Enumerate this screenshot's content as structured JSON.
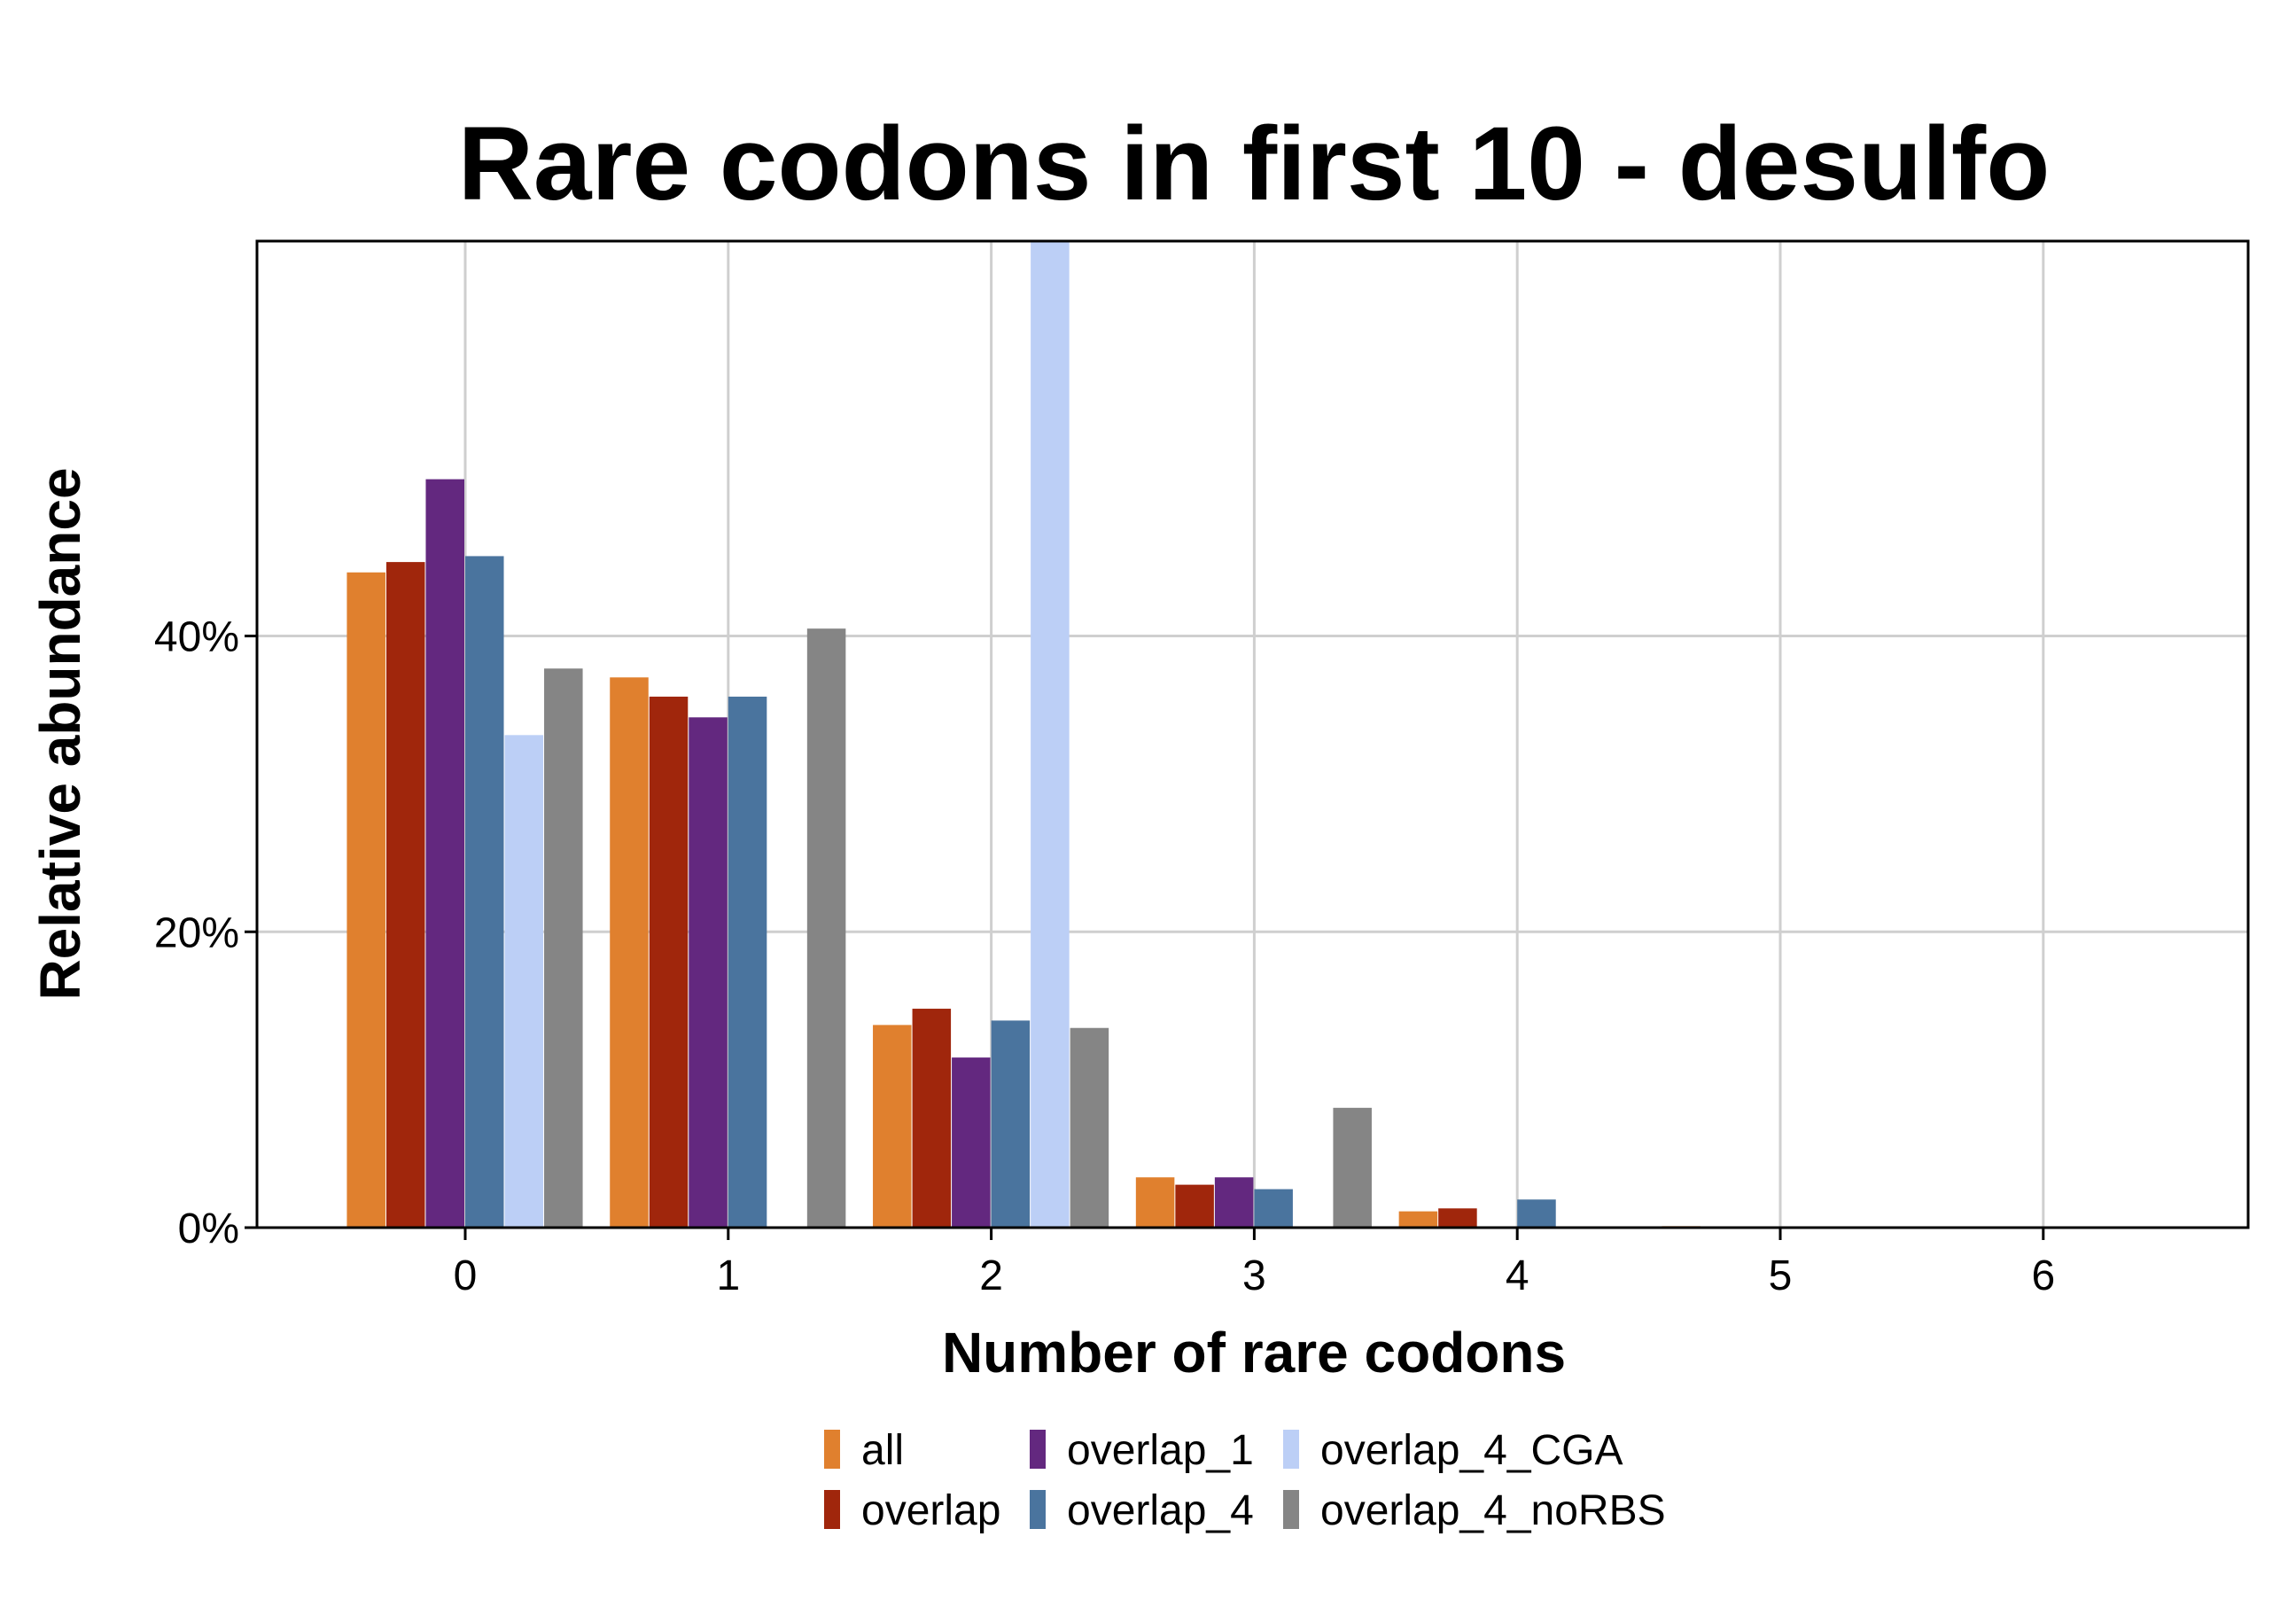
{
  "chart_data": {
    "type": "bar",
    "title": "Rare codons in first 10 - desulfo",
    "xlabel": "Number of rare codons",
    "ylabel": "Relative abundance",
    "categories": [
      "0",
      "1",
      "2",
      "3",
      "4",
      "5",
      "6"
    ],
    "y_ticks": [
      "0%",
      "20%",
      "40%"
    ],
    "y_tick_values": [
      0,
      20,
      40
    ],
    "ylim": [
      0,
      66.7
    ],
    "grid": true,
    "legend_position": "bottom",
    "series": [
      {
        "name": "all",
        "color": "#E0802E",
        "values": [
          44.3,
          37.2,
          13.7,
          3.4,
          1.1,
          0.1,
          0.0
        ]
      },
      {
        "name": "overlap",
        "color": "#A0260C",
        "values": [
          45.0,
          35.9,
          14.8,
          2.9,
          1.3,
          0,
          0
        ]
      },
      {
        "name": "overlap_1",
        "color": "#63287F",
        "values": [
          50.6,
          34.5,
          11.5,
          3.4,
          0,
          0,
          0
        ]
      },
      {
        "name": "overlap_4",
        "color": "#4A749E",
        "values": [
          45.4,
          35.9,
          14.0,
          2.6,
          1.9,
          0,
          0
        ]
      },
      {
        "name": "overlap_4_CGA",
        "color": "#BCCFF6",
        "values": [
          33.3,
          0,
          66.7,
          0,
          0,
          0,
          0
        ]
      },
      {
        "name": "overlap_4_noRBS",
        "color": "#858585",
        "values": [
          37.8,
          40.5,
          13.5,
          8.1,
          0,
          0,
          0
        ]
      }
    ]
  }
}
